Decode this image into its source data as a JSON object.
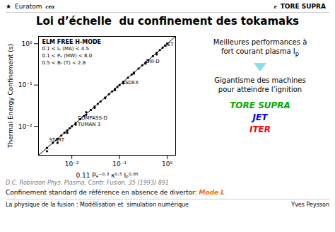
{
  "chart_data": {
    "type": "scatter",
    "title": "Loi d’échelle  du confinement des tokamaks",
    "x_label": "0.11 Pₑ⁻⁰·³ κ⁰·⁵ Iₚ⁰·⁸⁵",
    "y_label": "Thermal Energy Confinement (s)",
    "log": true,
    "grid": false,
    "xlim": [
      0.002,
      1.5
    ],
    "ylim": [
      0.002,
      1.5
    ],
    "xticks": [
      {
        "value": 0.01,
        "label": "10⁻²"
      },
      {
        "value": 0.1,
        "label": "10⁻¹"
      },
      {
        "value": 1,
        "label": "10⁰"
      }
    ],
    "yticks": [
      {
        "value": 0.01,
        "label": "10⁻²"
      },
      {
        "value": 0.1,
        "label": "10⁻¹"
      },
      {
        "value": 1,
        "label": "10⁰"
      }
    ],
    "series": [
      {
        "type": "scatter",
        "color": "#000000",
        "x": [
          0.003,
          0.004,
          0.005,
          0.006,
          0.007,
          0.008,
          0.009,
          0.01,
          0.012,
          0.015,
          0.018,
          0.02,
          0.025,
          0.03,
          0.035,
          0.04,
          0.05,
          0.06,
          0.07,
          0.08,
          0.09,
          0.1,
          0.12,
          0.15,
          0.18,
          0.2,
          0.25,
          0.3,
          0.35,
          0.4,
          0.5,
          0.6,
          0.7,
          0.8,
          0.9,
          1.0,
          0.003,
          0.005,
          0.008,
          0.012,
          0.02,
          0.03,
          0.05,
          0.08,
          0.12,
          0.2,
          0.35,
          0.6
        ],
        "values": [
          0.003,
          0.004,
          0.005,
          0.006,
          0.007,
          0.008,
          0.009,
          0.01,
          0.012,
          0.015,
          0.018,
          0.022,
          0.025,
          0.03,
          0.035,
          0.04,
          0.05,
          0.06,
          0.07,
          0.08,
          0.09,
          0.1,
          0.12,
          0.15,
          0.18,
          0.2,
          0.25,
          0.3,
          0.35,
          0.4,
          0.5,
          0.6,
          0.7,
          0.8,
          0.9,
          1.0,
          0.0025,
          0.004,
          0.007,
          0.011,
          0.019,
          0.028,
          0.048,
          0.075,
          0.11,
          0.19,
          0.33,
          0.55
        ]
      },
      {
        "type": "line",
        "line_style": "solid",
        "color": "#000000",
        "x": [
          0.002,
          1.5
        ],
        "values": [
          0.002,
          1.5
        ]
      }
    ],
    "annotations": [
      "ELM FREE H-MODE",
      "0.1 < Iₚ (MA) < 4.5",
      "0.1 < Pₑ (MW) < 8.0",
      "0.5 < Bₜ (T) < 2.8"
    ],
    "point_labels": [
      {
        "text": "JET",
        "x": 0.85,
        "y": 0.95
      },
      {
        "text": "DIII-D",
        "x": 0.32,
        "y": 0.38
      },
      {
        "text": "ASDEX",
        "x": 0.1,
        "y": 0.115
      },
      {
        "text": "COMPASS-D",
        "x": 0.012,
        "y": 0.016
      },
      {
        "text": "TUMAN 3",
        "x": 0.012,
        "y": 0.011
      },
      {
        "text": "START",
        "x": 0.003,
        "y": 0.0048
      }
    ],
    "header_left": [
      "★",
      "Euratom",
      "cea"
    ],
    "header_right": [
      "e",
      "TORE SUPRA"
    ],
    "side_text_top": [
      {
        "text": "Meilleures performances à"
      },
      {
        "text": "fort courant plasma I",
        "sub": "p"
      }
    ],
    "side_text_bottom": [
      {
        "text": "Gigantisme des machines"
      },
      {
        "text": "pour atteindre l’ignition"
      }
    ],
    "machines": [
      {
        "text": "TORE SUPRA",
        "color": "#00aa00"
      },
      {
        "text": "JET",
        "color": "#0000ff"
      },
      {
        "text": "ITER",
        "color": "#ff0000"
      }
    ],
    "source": "D.C. Robinson Phys. Plasma. Contr. Fusion. 35 (1993) 891",
    "footnote": [
      {
        "text": "Confinement standard de référence en absence de divertor: "
      },
      {
        "text": "Mode L",
        "color": "#ff6600"
      }
    ],
    "footer_left": "La physique de la fusion : Modélisation et  simulation numérique",
    "footer_right": "Yves Peysson"
  }
}
